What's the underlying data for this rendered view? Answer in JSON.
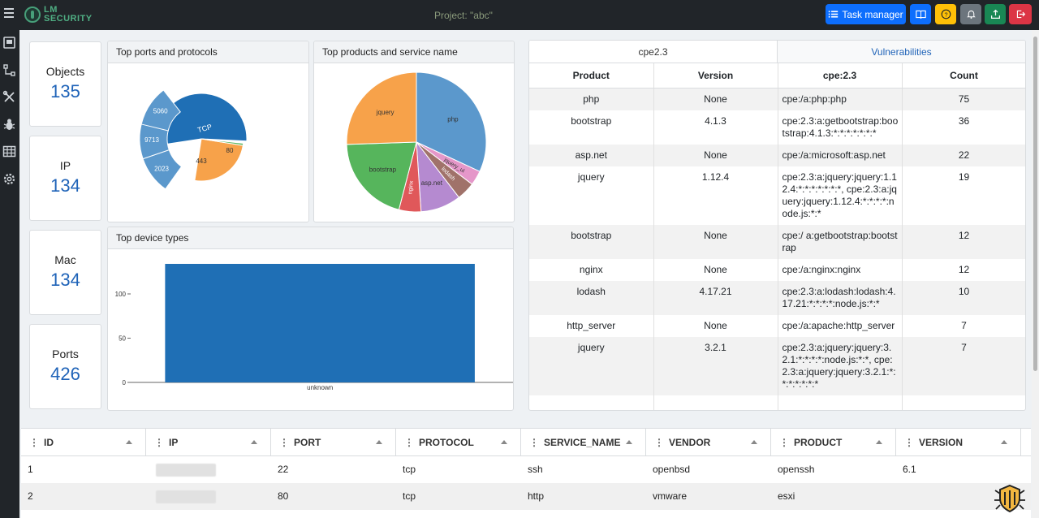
{
  "header": {
    "logo_line1": "LM",
    "logo_line2": "SECURITY",
    "project_title": "Project: \"abc\"",
    "task_manager_label": "Task manager",
    "accent_color": "#0d6efd"
  },
  "stats": [
    {
      "label": "Objects",
      "value": "135"
    },
    {
      "label": "IP",
      "value": "134"
    },
    {
      "label": "Mac",
      "value": "134"
    },
    {
      "label": "Ports",
      "value": "426"
    }
  ],
  "ports_chart": {
    "title": "Top ports and protocols",
    "chart_data": {
      "type": "pie",
      "subtype": "sunburst",
      "inner": [
        {
          "label": "TCP",
          "value": 340
        }
      ],
      "outer": [
        {
          "label": "443",
          "value": 90
        },
        {
          "label": "80",
          "value": 70
        },
        {
          "label": "2023",
          "value": 60
        },
        {
          "label": "9713",
          "value": 60
        },
        {
          "label": "5060",
          "value": 60
        }
      ]
    }
  },
  "products_chart": {
    "title": "Top products and service name",
    "chart_data": {
      "type": "pie",
      "categories": [
        "php",
        "jquery_ui",
        "lodash",
        "asp.net",
        "nginx",
        "bootstrap",
        "jquery"
      ],
      "values": [
        75,
        8,
        10,
        22,
        12,
        48,
        60
      ]
    }
  },
  "device_chart": {
    "title": "Top device types",
    "chart_data": {
      "type": "bar",
      "categories": [
        "unknown"
      ],
      "values": [
        134
      ],
      "ylim": [
        0,
        134
      ],
      "yticks": [
        0,
        50,
        100
      ],
      "title": "Top device types"
    }
  },
  "cpe_panel": {
    "tabs": [
      "cpe2.3",
      "Vulnerabilities"
    ],
    "columns": [
      "Product",
      "Version",
      "cpe:2.3",
      "Count"
    ],
    "rows": [
      {
        "product": "php",
        "version": "None",
        "cpe": "cpe:/a:php:php",
        "count": "75"
      },
      {
        "product": "bootstrap",
        "version": "4.1.3",
        "cpe": "cpe:2.3:a:getbootstrap:bootstrap:4.1.3:*:*:*:*:*:*:*",
        "count": "36"
      },
      {
        "product": "asp.net",
        "version": "None",
        "cpe": "cpe:/a:microsoft:asp.net",
        "count": "22"
      },
      {
        "product": "jquery",
        "version": "1.12.4",
        "cpe": "cpe:2.3:a:jquery:jquery:1.12.4:*:*:*:*:*:*:*, cpe:2.3:a:jquery:jquery:1.12.4:*:*:*:*:node.js:*:*",
        "count": "19"
      },
      {
        "product": "bootstrap",
        "version": "None",
        "cpe": "cpe:/ a:getbootstrap:bootstrap",
        "count": "12"
      },
      {
        "product": "nginx",
        "version": "None",
        "cpe": "cpe:/a:nginx:nginx",
        "count": "12"
      },
      {
        "product": "lodash",
        "version": "4.17.21",
        "cpe": "cpe:2.3:a:lodash:lodash:4.17.21:*:*:*:*:node.js:*:*",
        "count": "10"
      },
      {
        "product": "http_server",
        "version": "None",
        "cpe": "cpe:/a:apache:http_server",
        "count": "7"
      },
      {
        "product": "jquery",
        "version": "3.2.1",
        "cpe": "cpe:2.3:a:jquery:jquery:3.2.1:*:*:*:*:node.js:*:*, cpe:2.3:a:jquery:jquery:3.2.1:*:*:*:*:*:*:*",
        "count": "7"
      }
    ]
  },
  "grid": {
    "columns": [
      "ID",
      "IP",
      "PORT",
      "PROTOCOL",
      "SERVICE_NAME",
      "VENDOR",
      "PRODUCT",
      "VERSION"
    ],
    "rows": [
      {
        "id": "1",
        "port": "22",
        "protocol": "tcp",
        "service": "ssh",
        "vendor": "openbsd",
        "product": "openssh",
        "version": "6.1"
      },
      {
        "id": "2",
        "port": "80",
        "protocol": "tcp",
        "service": "http",
        "vendor": "vmware",
        "product": "esxi",
        "version": ""
      }
    ]
  }
}
